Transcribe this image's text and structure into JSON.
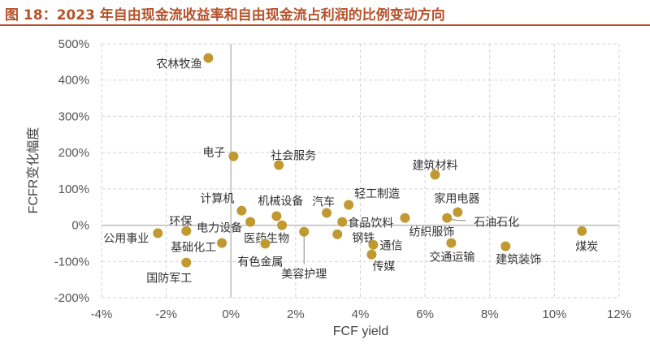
{
  "title": "图 18：2023 年自由现金流收益率和自由现金流占利润的比例变动方向",
  "chart_data": {
    "type": "scatter",
    "xlabel": "FCF yield",
    "ylabel": "FCFR变化幅度",
    "xlim": [
      -4,
      12
    ],
    "ylim": [
      -200,
      500
    ],
    "xticks": [
      -4,
      -2,
      0,
      2,
      4,
      6,
      8,
      10,
      12
    ],
    "yticks": [
      -200,
      -100,
      0,
      100,
      200,
      300,
      400,
      500
    ],
    "x_tick_labels": [
      "-4%",
      "-2%",
      "0%",
      "2%",
      "4%",
      "6%",
      "8%",
      "10%",
      "12%"
    ],
    "y_tick_labels": [
      "-200%",
      "-100%",
      "0%",
      "100%",
      "200%",
      "300%",
      "400%",
      "500%"
    ],
    "grid": true,
    "marker_color": "#c09a30",
    "points": [
      {
        "label": "农林牧渔",
        "x": -0.7,
        "y": 461
      },
      {
        "label": "电子",
        "x": 0.08,
        "y": 190
      },
      {
        "label": "社会服务",
        "x": 1.48,
        "y": 166
      },
      {
        "label": "计算机",
        "x": 0.33,
        "y": 40
      },
      {
        "label": "机械设备",
        "x": 1.41,
        "y": 25
      },
      {
        "label": "汽车",
        "x": 2.96,
        "y": 34
      },
      {
        "label": "环保",
        "x": -1.38,
        "y": -16
      },
      {
        "label": "电力设备",
        "x": 0.6,
        "y": 9
      },
      {
        "label": "医药生物",
        "x": 1.58,
        "y": 0
      },
      {
        "label": "有色金属",
        "x": 1.06,
        "y": -51
      },
      {
        "label": "美容护理",
        "x": 2.26,
        "y": -18
      },
      {
        "label": "公用事业",
        "x": -2.26,
        "y": -22
      },
      {
        "label": "基础化工",
        "x": -0.28,
        "y": -49
      },
      {
        "label": "国防军工",
        "x": -1.38,
        "y": -103
      },
      {
        "label": "轻工制造",
        "x": 3.64,
        "y": 56
      },
      {
        "label": "钢铁",
        "x": 3.29,
        "y": -25
      },
      {
        "label": "食品饮料",
        "x": 3.44,
        "y": 9
      },
      {
        "label": "纺织服饰",
        "x": 5.38,
        "y": 20
      },
      {
        "label": "通信",
        "x": 4.4,
        "y": -54
      },
      {
        "label": "传媒",
        "x": 4.35,
        "y": -81
      },
      {
        "label": "建筑材料",
        "x": 6.31,
        "y": 139
      },
      {
        "label": "家用电器",
        "x": 7.01,
        "y": 36
      },
      {
        "label": "石油石化",
        "x": 6.68,
        "y": 20
      },
      {
        "label": "交通运输",
        "x": 6.81,
        "y": -49
      },
      {
        "label": "建筑装饰",
        "x": 8.49,
        "y": -58
      },
      {
        "label": "煤炭",
        "x": 10.85,
        "y": -16
      }
    ]
  }
}
